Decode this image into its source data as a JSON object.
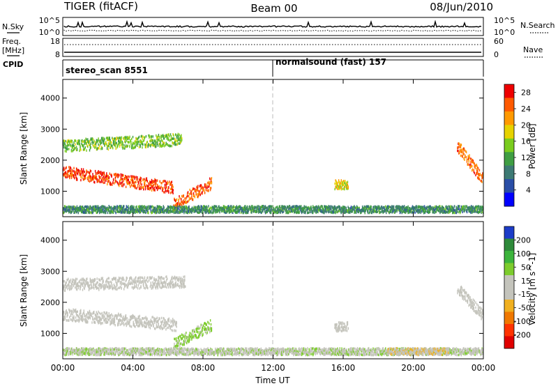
{
  "header": {
    "radar": "TIGER (fitACF)",
    "beam": "Beam 00",
    "date": "08/Jun/2010"
  },
  "left_labels": {
    "nsky": "N.Sky",
    "freq_line1": "Freq.",
    "freq_line2": "[MHz]",
    "cpid": "CPID"
  },
  "right_labels": {
    "nsearch": "N.Search",
    "nave": "Nave"
  },
  "noise_axis": {
    "top_label": "10^5",
    "bottom_label": "10^0",
    "right_top_label": "10^5",
    "right_bottom_label": "10^0"
  },
  "freq_axis": {
    "left_top": "18",
    "left_bottom": "8",
    "right_top": "60",
    "right_bottom": "0"
  },
  "cpid_bar": {
    "segment1": "stereo_scan 8551",
    "segment2": "normalsound (fast) 157"
  },
  "colors": {
    "power": [
      "#0000ff",
      "#2a4ea6",
      "#3d7a74",
      "#3f9e43",
      "#7acc1e",
      "#e6d200",
      "#ff9900",
      "#ff5a00",
      "#ee0000"
    ],
    "velocity": [
      "#1c3cc8",
      "#2e8a3a",
      "#3cb43c",
      "#7dcc2d",
      "#c4c4bc",
      "#c4c4bc",
      "#f0b020",
      "#f07800",
      "#ff3300",
      "#e00000"
    ]
  },
  "chart_data": [
    {
      "type": "heatmap",
      "panel": "power",
      "xlabel": "",
      "ylabel": "Slant Range [km]",
      "x_ticks": [
        "00:00",
        "04:00",
        "08:00",
        "12:00",
        "16:00",
        "20:00",
        "00:00"
      ],
      "xlim_hours": [
        0,
        24
      ],
      "ylim": [
        180,
        4600
      ],
      "y_ticks": [
        1000,
        2000,
        3000,
        4000
      ],
      "colorbar": {
        "label": "Power [dB]",
        "ticks": [
          4,
          8,
          12,
          16,
          20,
          24,
          28
        ],
        "range": [
          0,
          30
        ]
      },
      "features": [
        {
          "name": "main-echo-band",
          "start_hour": 0.0,
          "end_hour": 6.3,
          "range_start_km": 1650,
          "range_end_km": 1150,
          "power_db": 26
        },
        {
          "name": "upper-echo-band",
          "start_hour": 0.0,
          "end_hour": 6.8,
          "range_start_km": 2500,
          "range_end_km": 2700,
          "power_db": 14
        },
        {
          "name": "ground-scatter-rise",
          "start_hour": 6.3,
          "end_hour": 8.5,
          "range_start_km": 600,
          "range_end_km": 1300,
          "power_db": 24
        },
        {
          "name": "near-range-scatter",
          "start_hour": 0.0,
          "end_hour": 24.0,
          "range_start_km": 450,
          "range_end_km": 450,
          "power_db": 10
        },
        {
          "name": "patch-15h",
          "start_hour": 15.5,
          "end_hour": 16.3,
          "range_start_km": 1250,
          "range_end_km": 1250,
          "power_db": 18
        },
        {
          "name": "late-echo",
          "start_hour": 22.5,
          "end_hour": 24.0,
          "range_start_km": 2500,
          "range_end_km": 1400,
          "power_db": 24
        }
      ]
    },
    {
      "type": "heatmap",
      "panel": "velocity",
      "xlabel": "Time UT",
      "ylabel": "Slant Range [km]",
      "x_ticks": [
        "00:00",
        "04:00",
        "08:00",
        "12:00",
        "16:00",
        "20:00",
        "00:00"
      ],
      "xlim_hours": [
        0,
        24
      ],
      "ylim": [
        180,
        4600
      ],
      "y_ticks": [
        1000,
        2000,
        3000,
        4000
      ],
      "colorbar": {
        "label": "Velocity [m s^-1]",
        "ticks": [
          200,
          100,
          50,
          15,
          -15,
          -50,
          -100,
          -200
        ],
        "range": [
          -250,
          250
        ]
      },
      "features": [
        {
          "name": "main-echo-band",
          "start_hour": 0.0,
          "end_hour": 6.5,
          "range_start_km": 1650,
          "range_end_km": 1300,
          "velocity": 0
        },
        {
          "name": "upper-echo-band",
          "start_hour": 0.0,
          "end_hour": 7.0,
          "range_start_km": 2600,
          "range_end_km": 2700,
          "velocity": 0
        },
        {
          "name": "ground-scatter-rise",
          "start_hour": 6.3,
          "end_hour": 8.5,
          "range_start_km": 700,
          "range_end_km": 1300,
          "velocity": 60
        },
        {
          "name": "near-range-scatter",
          "start_hour": 0.0,
          "end_hour": 24.0,
          "range_start_km": 450,
          "range_end_km": 450,
          "velocity": 40
        },
        {
          "name": "near-range-negative",
          "start_hour": 18.5,
          "end_hour": 22.0,
          "range_start_km": 450,
          "range_end_km": 450,
          "velocity": -40
        },
        {
          "name": "patch-15h",
          "start_hour": 15.5,
          "end_hour": 16.3,
          "range_start_km": 1250,
          "range_end_km": 1250,
          "velocity": 0
        },
        {
          "name": "late-echo",
          "start_hour": 22.5,
          "end_hour": 24.0,
          "range_start_km": 2500,
          "range_end_km": 1600,
          "velocity": 20
        }
      ]
    }
  ]
}
